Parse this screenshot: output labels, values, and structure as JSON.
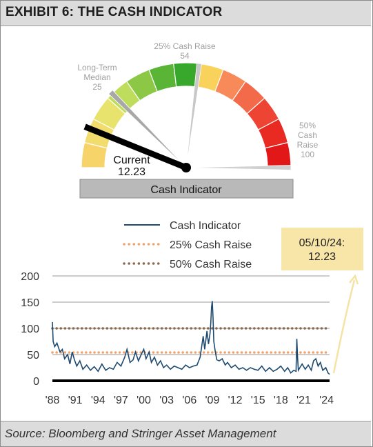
{
  "header": {
    "title": "EXHIBIT 6: THE CASH INDICATOR"
  },
  "footer": {
    "source": "Source: Bloomberg and Stringer Asset Management"
  },
  "gauge": {
    "min": 0,
    "max": 100,
    "bar_label": "Cash Indicator",
    "markers": {
      "current": {
        "line1": "Current",
        "value": "12.23",
        "v": 12.23,
        "color": "#000000"
      },
      "median": {
        "lines": [
          "Long-Term",
          "Median",
          "25"
        ],
        "v": 25,
        "color": "#a8a8a8"
      },
      "raise25": {
        "lines": [
          "25% Cash Raise",
          "54"
        ],
        "v": 54,
        "color": "#c8c8c8"
      },
      "raise50": {
        "lines": [
          "50%",
          "Cash",
          "Raise",
          "100"
        ],
        "v": 100,
        "color": "#d0d0d0"
      }
    },
    "colors": [
      "#f7d46a",
      "#f2dc6e",
      "#e8e36c",
      "#bedd5c",
      "#8cc846",
      "#5ab435",
      "#38a82c",
      "#f8d25a",
      "#f88a5a",
      "#f26a4a",
      "#ee4434",
      "#e82a22",
      "#e21818"
    ]
  },
  "chart_data": {
    "type": "line",
    "legend": [
      {
        "name": "Cash Indicator",
        "style": "solid",
        "color": "#1f4a70"
      },
      {
        "name": "25% Cash Raise",
        "style": "dotted",
        "color": "#f2a36b"
      },
      {
        "name": "50% Cash Raise",
        "style": "dotted",
        "color": "#8a6a4e"
      }
    ],
    "callout": {
      "date": "05/10/24:",
      "value": "12.23"
    },
    "ylim": [
      0,
      200
    ],
    "yticks": [
      "0",
      "50",
      "100",
      "150",
      "200"
    ],
    "xlim": [
      1988,
      2024.4
    ],
    "xticks": [
      "'88",
      "'91",
      "'94",
      "'97",
      "'00",
      "'03",
      "'06",
      "'09",
      "'12",
      "'15",
      "'18",
      "'21",
      "'24"
    ],
    "thresholds": {
      "raise25": 54,
      "raise50": 100
    },
    "series": [
      {
        "name": "Cash Indicator",
        "x": [
          1988.0,
          1988.1,
          1988.3,
          1988.6,
          1989.0,
          1989.3,
          1989.6,
          1990.0,
          1990.3,
          1990.6,
          1990.9,
          1991.2,
          1991.6,
          1992.0,
          1992.5,
          1993.0,
          1993.5,
          1994.0,
          1994.5,
          1995.0,
          1995.5,
          1996.0,
          1996.5,
          1997.0,
          1997.5,
          1997.8,
          1998.2,
          1998.6,
          1998.9,
          1999.3,
          1999.6,
          2000.0,
          2000.3,
          2000.7,
          2001.0,
          2001.4,
          2001.8,
          2002.2,
          2002.6,
          2003.0,
          2003.5,
          2004.0,
          2004.5,
          2005.0,
          2005.5,
          2006.0,
          2006.5,
          2007.0,
          2007.4,
          2007.8,
          2008.0,
          2008.3,
          2008.5,
          2008.7,
          2008.8,
          2008.9,
          2009.0,
          2009.1,
          2009.2,
          2009.4,
          2009.6,
          2009.9,
          2010.3,
          2010.7,
          2011.0,
          2011.5,
          2012.0,
          2012.5,
          2013.0,
          2013.5,
          2014.0,
          2014.5,
          2015.0,
          2015.5,
          2016.0,
          2016.5,
          2017.0,
          2017.5,
          2018.0,
          2018.5,
          2018.9,
          2019.3,
          2019.7,
          2020.0,
          2020.1,
          2020.2,
          2020.3,
          2020.5,
          2020.8,
          2021.2,
          2021.6,
          2022.0,
          2022.3,
          2022.6,
          2022.9,
          2023.2,
          2023.5,
          2023.9,
          2024.2,
          2024.4
        ],
        "y": [
          112,
          75,
          65,
          72,
          55,
          60,
          42,
          50,
          32,
          55,
          40,
          28,
          38,
          22,
          30,
          20,
          27,
          18,
          32,
          20,
          25,
          22,
          35,
          28,
          45,
          60,
          35,
          40,
          55,
          38,
          48,
          60,
          42,
          55,
          35,
          45,
          30,
          38,
          25,
          30,
          22,
          28,
          25,
          22,
          30,
          25,
          28,
          30,
          45,
          85,
          60,
          95,
          70,
          90,
          110,
          140,
          152,
          120,
          75,
          55,
          40,
          38,
          42,
          30,
          35,
          25,
          30,
          22,
          25,
          20,
          25,
          22,
          20,
          28,
          18,
          25,
          18,
          22,
          28,
          18,
          25,
          15,
          20,
          18,
          80,
          45,
          20,
          25,
          32,
          22,
          30,
          20,
          38,
          42,
          28,
          35,
          20,
          25,
          15,
          12.23
        ]
      }
    ]
  }
}
